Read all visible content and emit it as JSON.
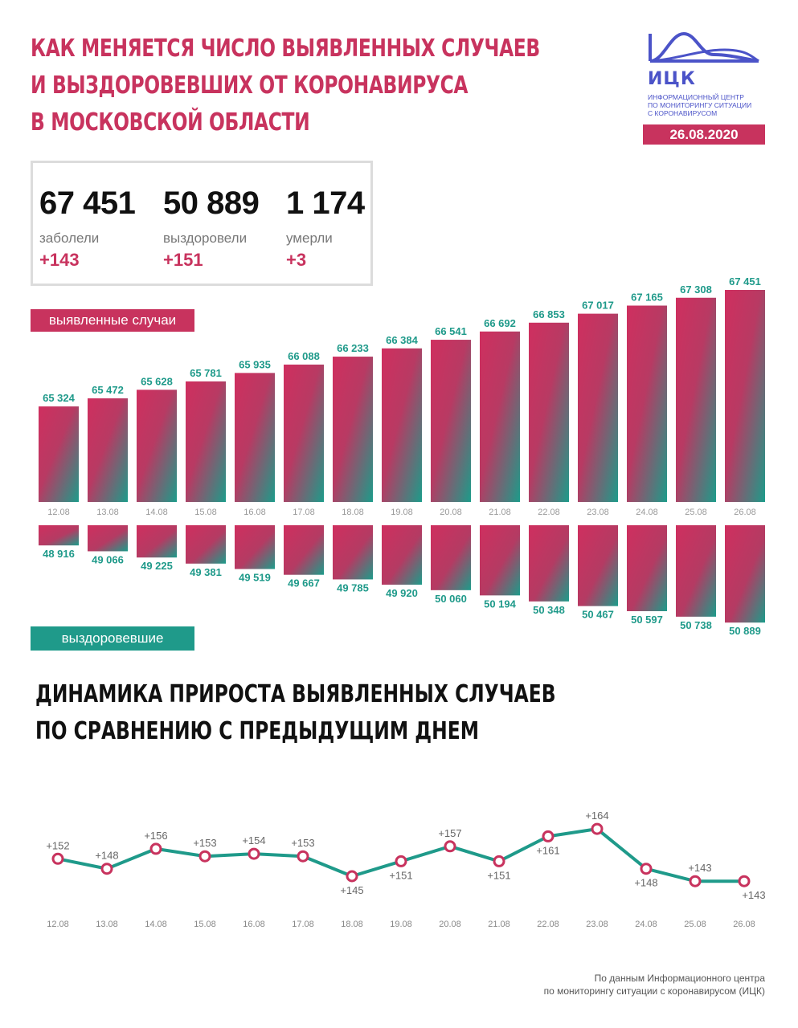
{
  "title": {
    "line1": "КАК МЕНЯЕТСЯ ЧИСЛО ВЫЯВЛЕННЫХ СЛУЧАЕВ",
    "line2": "И ВЫЗДОРОВЕВШИХ ОТ КОРОНАВИРУСА",
    "line3": "В МОСКОВСКОЙ ОБЛАСТИ"
  },
  "logo": {
    "abbr": "ИЦК",
    "line1": "ИНФОРМАЦИОННЫЙ ЦЕНТР",
    "line2": "ПО МОНИТОРИНГУ СИТУАЦИИ",
    "line3": "С КОРОНАВИРУСОМ"
  },
  "date": "26.08.2020",
  "stats": {
    "cases": {
      "value": "67 451",
      "label": "заболели",
      "delta": "+143"
    },
    "recovered": {
      "value": "50 889",
      "label": "выздоровели",
      "delta": "+151"
    },
    "deaths": {
      "value": "1 174",
      "label": "умерли",
      "delta": "+3"
    }
  },
  "labels": {
    "cases_badge": "выявленные случаи",
    "recovered_badge": "выздоровевшие"
  },
  "section2": {
    "line1": "ДИНАМИКА ПРИРОСТА ВЫЯВЛЕННЫХ СЛУЧАЕВ",
    "line2": "ПО СРАВНЕНИЮ С ПРЕДЫДУЩИМ ДНЕМ"
  },
  "footer": {
    "line1": "По данным Информационного центра",
    "line2": "по мониторингу ситуации с коронавирусом (ИЦК)"
  },
  "colors": {
    "accent_red": "#c8335e",
    "accent_teal": "#1f9a8a",
    "logo_blue": "#4b53c8"
  },
  "chart_data": [
    {
      "type": "bar",
      "categories": [
        "12.08",
        "13.08",
        "14.08",
        "15.08",
        "16.08",
        "17.08",
        "18.08",
        "19.08",
        "20.08",
        "21.08",
        "22.08",
        "23.08",
        "24.08",
        "25.08",
        "26.08"
      ],
      "series": [
        {
          "name": "выявленные случаи",
          "values": [
            65324,
            65472,
            65628,
            65781,
            65935,
            66088,
            66233,
            66384,
            66541,
            66692,
            66853,
            67017,
            67165,
            67308,
            67451
          ],
          "labels": [
            "65 324",
            "65 472",
            "65 628",
            "65 781",
            "65 935",
            "66 088",
            "66 233",
            "66 384",
            "66 541",
            "66 692",
            "66 853",
            "67 017",
            "67 165",
            "67 308",
            "67 451"
          ]
        },
        {
          "name": "выздоровевшие",
          "values": [
            48916,
            49066,
            49225,
            49381,
            49519,
            49667,
            49785,
            49920,
            50060,
            50194,
            50348,
            50467,
            50597,
            50738,
            50889
          ],
          "labels": [
            "48 916",
            "49 066",
            "49 225",
            "49 381",
            "49 519",
            "49 667",
            "49 785",
            "49 920",
            "50 060",
            "50 194",
            "50 348",
            "50 467",
            "50 597",
            "50 738",
            "50 889"
          ]
        }
      ]
    },
    {
      "type": "line",
      "categories": [
        "12.08",
        "13.08",
        "14.08",
        "15.08",
        "16.08",
        "17.08",
        "18.08",
        "19.08",
        "20.08",
        "21.08",
        "22.08",
        "23.08",
        "24.08",
        "25.08",
        "26.08"
      ],
      "values": [
        152,
        148,
        156,
        153,
        154,
        153,
        145,
        151,
        157,
        151,
        161,
        164,
        148,
        143,
        143
      ],
      "labels": [
        "+152",
        "+148",
        "+156",
        "+153",
        "+154",
        "+153",
        "+145",
        "+151",
        "+157",
        "+151",
        "+161",
        "+164",
        "+148",
        "+143",
        "+143"
      ]
    }
  ]
}
